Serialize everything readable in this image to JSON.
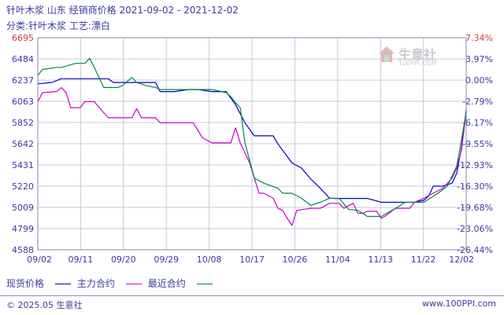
{
  "header": {
    "title": "针叶木浆 山东 经销商价格 2021-09-02 - 2021-12-02",
    "subtitle": "分类:针叶木浆 工艺:漂白"
  },
  "watermark": {
    "name": "生意社",
    "url": "100PPI.COM"
  },
  "legend": {
    "label": "现货价格",
    "items": [
      "主力合约",
      "最近合约"
    ]
  },
  "footer": {
    "copyright": "© 2025.05 生意社",
    "site": "www.100PPI.com"
  },
  "colors": {
    "spot": "#0000cc",
    "main": "#cc00cc",
    "recent": "#008844",
    "text": "#3a3aa0",
    "grid": "#c8c8d8",
    "axis": "#8a8ab0"
  },
  "chart_data": {
    "type": "line",
    "x_tick_labels": [
      "09/02",
      "09/11",
      "09/20",
      "09/29",
      "10/08",
      "10/17",
      "10/26",
      "11/04",
      "11/13",
      "11/22",
      "12/02"
    ],
    "y_left_ticks": [
      6695,
      6484,
      6237,
      6063,
      5852,
      5642,
      5431,
      5220,
      5009,
      4799,
      4588
    ],
    "y_right_ticks": [
      "7.34%",
      "3.97%",
      "0.00%",
      "-2.79%",
      "-6.17%",
      "-9.55%",
      "-12.93%",
      "-16.30%",
      "-19.68%",
      "-23.06%",
      "-26.44%"
    ],
    "ylim": [
      4588,
      6695
    ],
    "x_range": [
      0,
      91
    ],
    "series": [
      {
        "name": "现货价格",
        "x": [
          0,
          3,
          5,
          15,
          16,
          25,
          26,
          29,
          32,
          34,
          37,
          40,
          42,
          44,
          46,
          48,
          50,
          51,
          54,
          56,
          58,
          60,
          62,
          63,
          65,
          67,
          70,
          73,
          76,
          80,
          82,
          83,
          84,
          86,
          88,
          89,
          90,
          91
        ],
        "values": [
          6237,
          6250,
          6288,
          6288,
          6250,
          6250,
          6160,
          6160,
          6180,
          6180,
          6160,
          6160,
          6030,
          5850,
          5720,
          5720,
          5720,
          5640,
          5450,
          5400,
          5290,
          5200,
          5100,
          5098,
          5098,
          5098,
          5098,
          5060,
          5060,
          5060,
          5080,
          5120,
          5220,
          5220,
          5250,
          5350,
          5600,
          5980
        ]
      },
      {
        "name": "主力合约",
        "x": [
          0,
          1,
          4,
          5,
          6,
          7,
          9,
          10,
          12,
          14,
          15,
          16,
          18,
          20,
          21,
          22,
          25,
          26,
          31,
          33,
          35,
          37,
          40,
          41,
          42,
          43,
          45,
          46,
          47,
          48,
          50,
          51,
          52,
          53,
          54,
          55,
          58,
          60,
          62,
          64,
          65,
          67,
          68,
          69,
          70,
          72,
          73,
          74,
          76,
          79,
          80,
          82,
          84,
          86,
          88,
          89,
          90,
          91
        ],
        "values": [
          6060,
          6150,
          6160,
          6200,
          6150,
          6000,
          6000,
          6060,
          6060,
          5950,
          5900,
          5900,
          5900,
          5900,
          5990,
          5900,
          5900,
          5850,
          5850,
          5850,
          5700,
          5650,
          5650,
          5650,
          5800,
          5650,
          5450,
          5300,
          5150,
          5150,
          5100,
          5000,
          4980,
          4900,
          4830,
          4980,
          5000,
          5000,
          5050,
          5050,
          5000,
          5050,
          4950,
          4950,
          4970,
          4970,
          4900,
          4930,
          5000,
          5000,
          5060,
          5100,
          5150,
          5200,
          5300,
          5400,
          5580,
          5950
        ]
      },
      {
        "name": "最近合约",
        "x": [
          0,
          1,
          4,
          5,
          8,
          10,
          11,
          12,
          14,
          16,
          17,
          18,
          20,
          21,
          23,
          25,
          26,
          29,
          31,
          34,
          37,
          40,
          41,
          42,
          43,
          44,
          46,
          48,
          51,
          52,
          54,
          56,
          58,
          60,
          62,
          64,
          66,
          68,
          70,
          73,
          76,
          78,
          82,
          85,
          87,
          89,
          90,
          91
        ],
        "values": [
          6320,
          6380,
          6400,
          6400,
          6440,
          6440,
          6490,
          6400,
          6200,
          6200,
          6200,
          6220,
          6300,
          6250,
          6220,
          6200,
          6180,
          6180,
          6180,
          6180,
          6180,
          6150,
          6110,
          6050,
          6000,
          5650,
          5300,
          5250,
          5200,
          5150,
          5150,
          5100,
          5030,
          5060,
          5100,
          5100,
          4990,
          4980,
          4920,
          4920,
          5000,
          5060,
          5060,
          5150,
          5220,
          5420,
          5680,
          5950
        ]
      }
    ],
    "grid": true,
    "legend_position": "bottom"
  }
}
